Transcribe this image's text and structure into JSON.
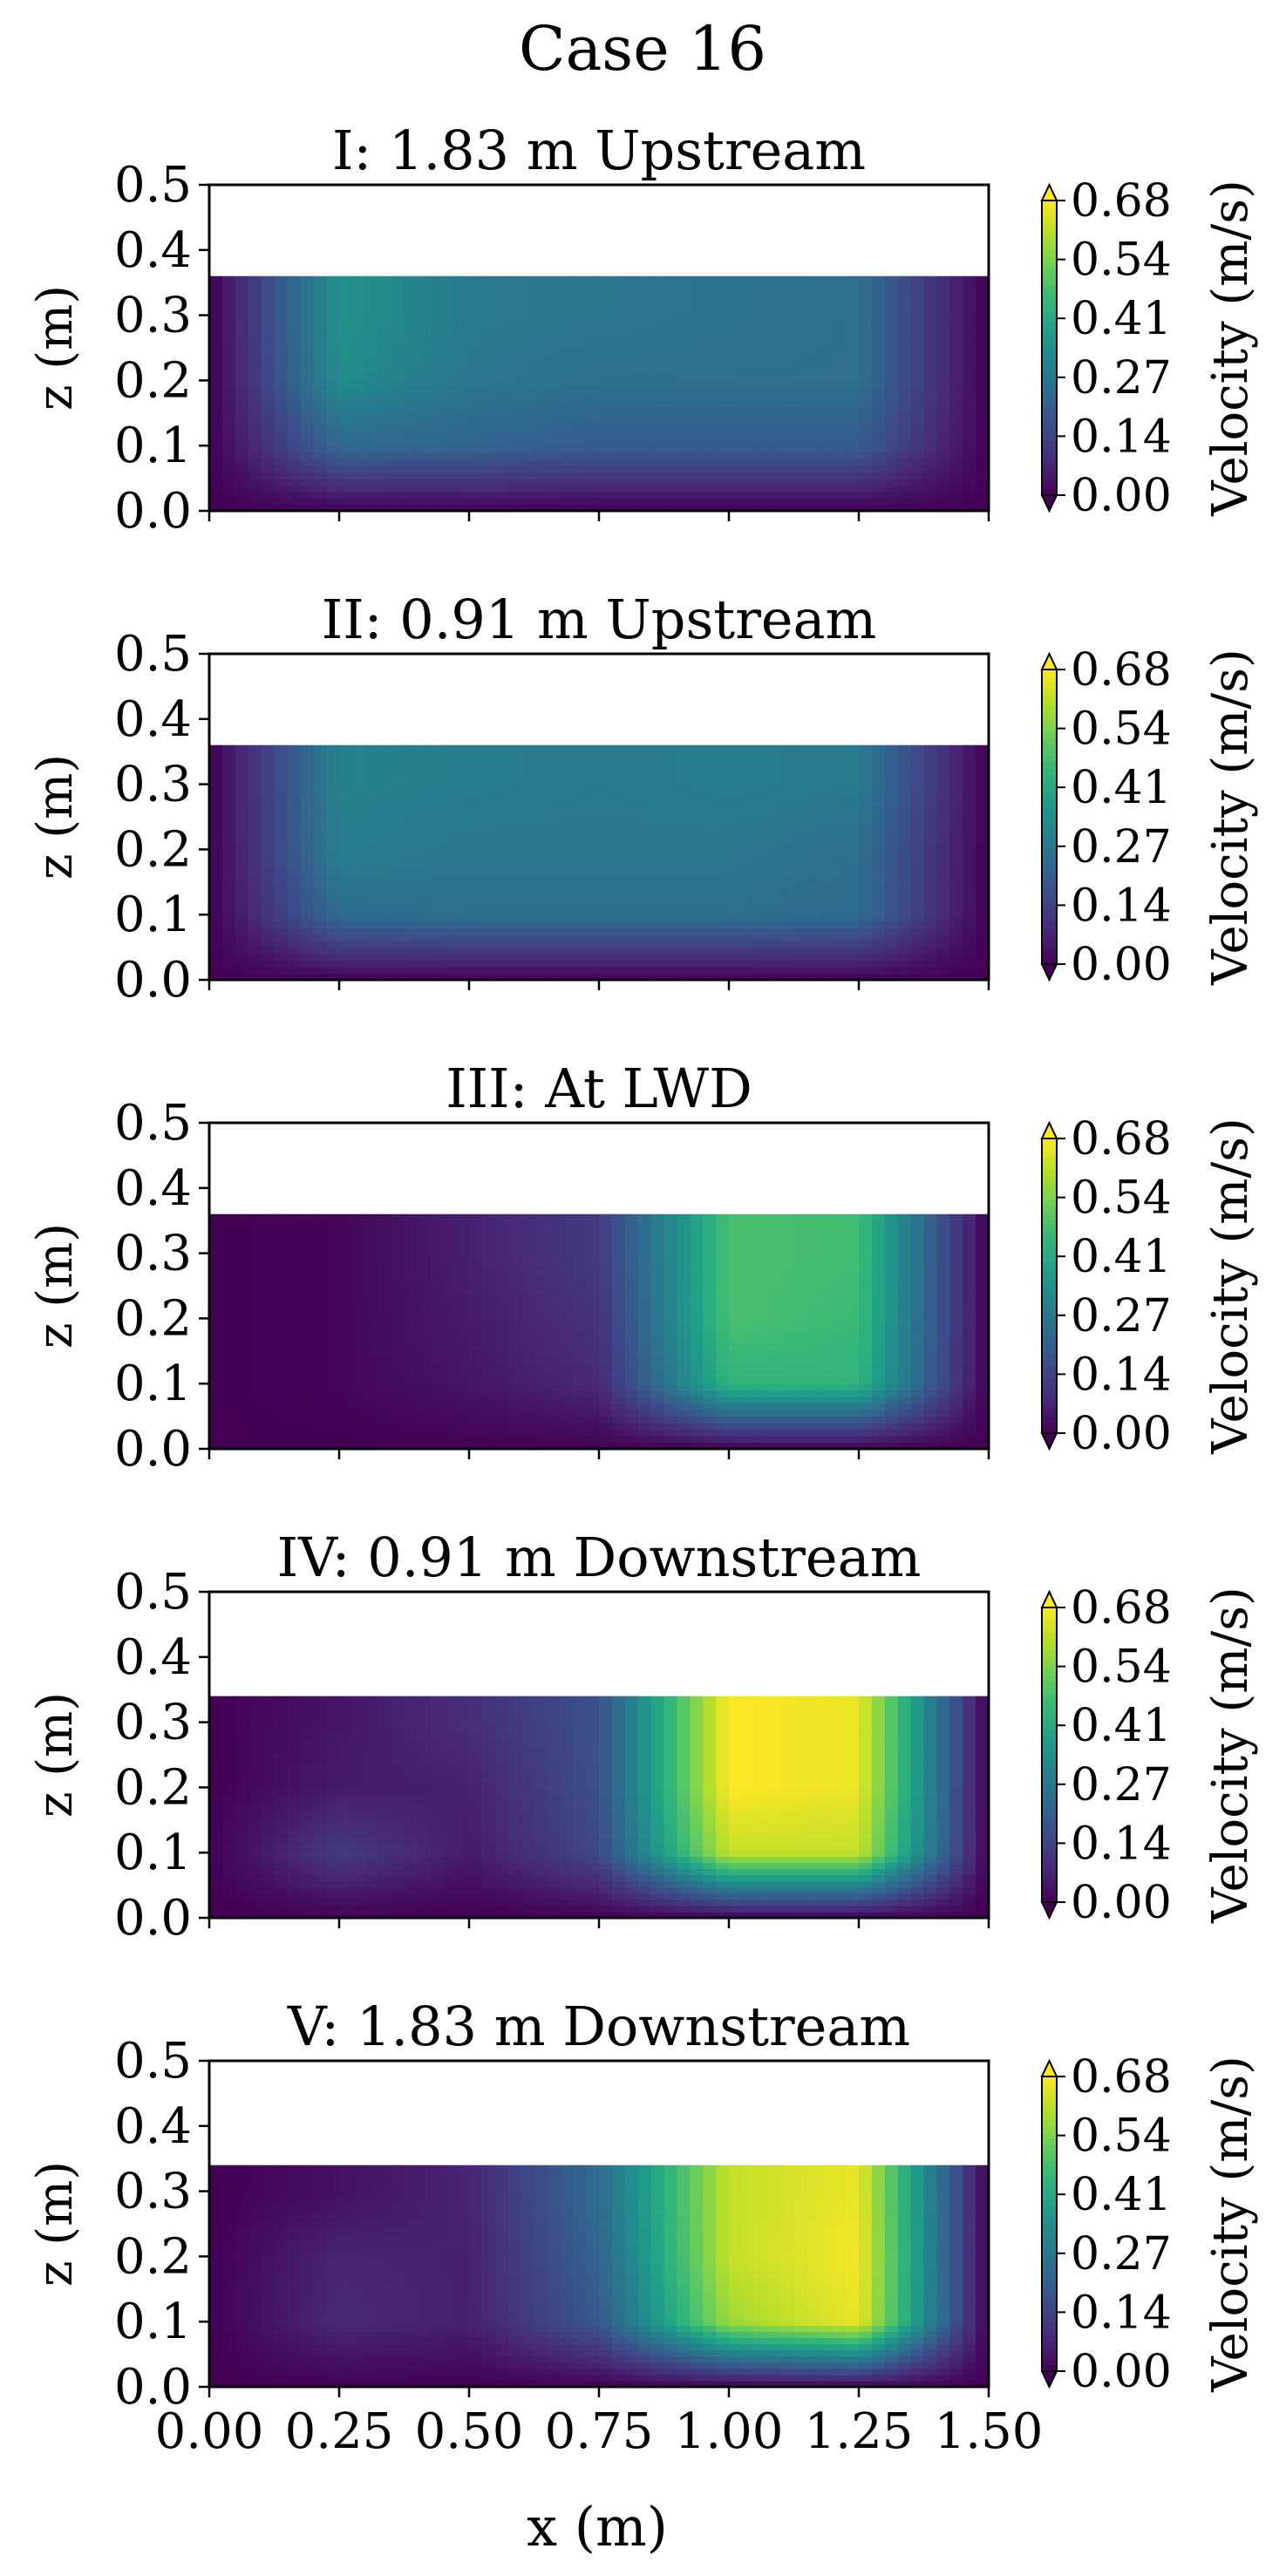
{
  "figure": {
    "title": "Case 16",
    "xlabel": "x (m)"
  },
  "colors": {
    "viridis": [
      "#440154",
      "#482878",
      "#3e4989",
      "#31688e",
      "#26828e",
      "#1f9e89",
      "#35b779",
      "#6ece58",
      "#b5de2b",
      "#fde725"
    ]
  },
  "chart_data": [
    {
      "type": "heatmap",
      "title": "I: 1.83 m Upstream",
      "xlabel": "x (m)",
      "ylabel": "z (m)",
      "xlim": [
        0,
        1.5
      ],
      "ylim": [
        0,
        0.5
      ],
      "xticks": [
        "0.00",
        "0.25",
        "0.50",
        "0.75",
        "1.00",
        "1.25",
        "1.50"
      ],
      "yticks": [
        "0.0",
        "0.1",
        "0.2",
        "0.3",
        "0.4",
        "0.5"
      ],
      "water_depth": 0.36,
      "colorbar": {
        "label": "Velocity (m/s)",
        "range": [
          0,
          0.68
        ],
        "ticks": [
          "0.00",
          "0.14",
          "0.27",
          "0.41",
          "0.54",
          "0.68"
        ],
        "extend": "both"
      },
      "x": [
        0,
        0.25,
        0.5,
        0.75,
        1.0,
        1.25,
        1.5
      ],
      "z": [
        0,
        0.1,
        0.2,
        0.3,
        0.36
      ],
      "values": [
        [
          0,
          0,
          0,
          0,
          0,
          0,
          0
        ],
        [
          0,
          0.23,
          0.22,
          0.2,
          0.2,
          0.2,
          0
        ],
        [
          0,
          0.33,
          0.27,
          0.25,
          0.25,
          0.25,
          0
        ],
        [
          0,
          0.35,
          0.28,
          0.27,
          0.26,
          0.25,
          0
        ],
        [
          0,
          0.35,
          0.28,
          0.27,
          0.26,
          0.25,
          0
        ]
      ]
    },
    {
      "type": "heatmap",
      "title": "II: 0.91 m Upstream",
      "xlabel": "x (m)",
      "ylabel": "z (m)",
      "xlim": [
        0,
        1.5
      ],
      "ylim": [
        0,
        0.5
      ],
      "xticks": [
        "0.00",
        "0.25",
        "0.50",
        "0.75",
        "1.00",
        "1.25",
        "1.50"
      ],
      "yticks": [
        "0.0",
        "0.1",
        "0.2",
        "0.3",
        "0.4",
        "0.5"
      ],
      "water_depth": 0.36,
      "colorbar": {
        "label": "Velocity (m/s)",
        "range": [
          0,
          0.68
        ],
        "ticks": [
          "0.00",
          "0.14",
          "0.27",
          "0.41",
          "0.54",
          "0.68"
        ],
        "extend": "both"
      },
      "x": [
        0,
        0.25,
        0.5,
        0.75,
        1.0,
        1.25,
        1.5
      ],
      "z": [
        0,
        0.1,
        0.2,
        0.3,
        0.36
      ],
      "values": [
        [
          0,
          0,
          0,
          0,
          0,
          0,
          0
        ],
        [
          0,
          0.24,
          0.25,
          0.25,
          0.25,
          0.24,
          0
        ],
        [
          0,
          0.29,
          0.27,
          0.27,
          0.27,
          0.25,
          0
        ],
        [
          0,
          0.3,
          0.29,
          0.28,
          0.29,
          0.28,
          0
        ],
        [
          0,
          0.3,
          0.29,
          0.28,
          0.29,
          0.28,
          0
        ]
      ]
    },
    {
      "type": "heatmap",
      "title": "III: At LWD",
      "xlabel": "x (m)",
      "ylabel": "z (m)",
      "xlim": [
        0,
        1.5
      ],
      "ylim": [
        0,
        0.5
      ],
      "xticks": [
        "0.00",
        "0.25",
        "0.50",
        "0.75",
        "1.00",
        "1.25",
        "1.50"
      ],
      "yticks": [
        "0.0",
        "0.1",
        "0.2",
        "0.3",
        "0.4",
        "0.5"
      ],
      "water_depth": 0.36,
      "colorbar": {
        "label": "Velocity (m/s)",
        "range": [
          0,
          0.68
        ],
        "ticks": [
          "0.00",
          "0.14",
          "0.27",
          "0.41",
          "0.54",
          "0.68"
        ],
        "extend": "both"
      },
      "x": [
        0,
        0.25,
        0.5,
        0.75,
        1.0,
        1.25,
        1.5
      ],
      "z": [
        0,
        0.1,
        0.2,
        0.3,
        0.36
      ],
      "values": [
        [
          0,
          0,
          0,
          0,
          0,
          0,
          0
        ],
        [
          0,
          0.01,
          0.04,
          0.08,
          0.44,
          0.44,
          0
        ],
        [
          0,
          0.01,
          0.05,
          0.1,
          0.48,
          0.46,
          0
        ],
        [
          0,
          0.01,
          0.06,
          0.12,
          0.48,
          0.47,
          0
        ],
        [
          0,
          0.01,
          0.06,
          0.12,
          0.48,
          0.47,
          0
        ]
      ]
    },
    {
      "type": "heatmap",
      "title": "IV: 0.91 m Downstream",
      "xlabel": "x (m)",
      "ylabel": "z (m)",
      "xlim": [
        0,
        1.5
      ],
      "ylim": [
        0,
        0.5
      ],
      "xticks": [
        "0.00",
        "0.25",
        "0.50",
        "0.75",
        "1.00",
        "1.25",
        "1.50"
      ],
      "yticks": [
        "0.0",
        "0.1",
        "0.2",
        "0.3",
        "0.4",
        "0.5"
      ],
      "water_depth": 0.34,
      "colorbar": {
        "label": "Velocity (m/s)",
        "range": [
          0,
          0.68
        ],
        "ticks": [
          "0.00",
          "0.14",
          "0.27",
          "0.41",
          "0.54",
          "0.68"
        ],
        "extend": "both"
      },
      "x": [
        0,
        0.25,
        0.5,
        0.75,
        1.0,
        1.25,
        1.5
      ],
      "z": [
        0,
        0.1,
        0.2,
        0.3,
        0.34
      ],
      "values": [
        [
          0,
          0,
          0,
          0,
          0,
          0,
          0
        ],
        [
          0,
          0.12,
          0.05,
          0.15,
          0.62,
          0.62,
          0
        ],
        [
          0,
          0.05,
          0.06,
          0.17,
          0.68,
          0.66,
          0
        ],
        [
          0,
          0.04,
          0.09,
          0.17,
          0.68,
          0.66,
          0
        ],
        [
          0,
          0.04,
          0.09,
          0.17,
          0.68,
          0.66,
          0
        ]
      ]
    },
    {
      "type": "heatmap",
      "title": "V: 1.83 m Downstream",
      "xlabel": "x (m)",
      "ylabel": "z (m)",
      "xlim": [
        0,
        1.5
      ],
      "ylim": [
        0,
        0.5
      ],
      "xticks": [
        "0.00",
        "0.25",
        "0.50",
        "0.75",
        "1.00",
        "1.25",
        "1.50"
      ],
      "yticks": [
        "0.0",
        "0.1",
        "0.2",
        "0.3",
        "0.4",
        "0.5"
      ],
      "water_depth": 0.34,
      "colorbar": {
        "label": "Velocity (m/s)",
        "range": [
          0,
          0.68
        ],
        "ticks": [
          "0.00",
          "0.14",
          "0.27",
          "0.41",
          "0.54",
          "0.68"
        ],
        "extend": "both"
      },
      "x": [
        0,
        0.25,
        0.5,
        0.75,
        1.0,
        1.25,
        1.5
      ],
      "z": [
        0,
        0.1,
        0.2,
        0.3,
        0.34
      ],
      "values": [
        [
          0,
          0,
          0,
          0,
          0,
          0,
          0
        ],
        [
          0,
          0.08,
          0.06,
          0.19,
          0.58,
          0.66,
          0
        ],
        [
          0,
          0.07,
          0.06,
          0.22,
          0.62,
          0.67,
          0
        ],
        [
          0,
          0.03,
          0.07,
          0.24,
          0.62,
          0.66,
          0
        ],
        [
          0,
          0.03,
          0.07,
          0.24,
          0.62,
          0.66,
          0
        ]
      ]
    }
  ]
}
